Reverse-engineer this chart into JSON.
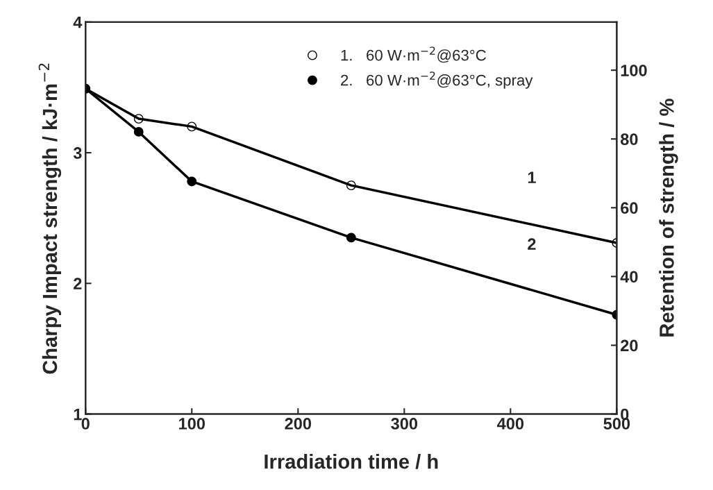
{
  "chart_data": {
    "type": "line",
    "xlabel": "Irradiation time / h",
    "ylabel": "Charpy Impact strength / kJ·m$^{−2}$",
    "y2label": "Retention of strength / %",
    "x": [
      0,
      50,
      100,
      250,
      500
    ],
    "series": [
      {
        "name": "1.   60 W·m$^{−2}$@63°C",
        "color": "#000000",
        "values": [
          3.49,
          3.26,
          3.2,
          2.75,
          2.31
        ]
      },
      {
        "name": "2.   60 W·m$^{−2}$@63°C, spray",
        "color": "#000000",
        "values": [
          3.49,
          3.16,
          2.78,
          2.35,
          1.76
        ]
      }
    ],
    "xlim": [
      0,
      500
    ],
    "xticks": [
      0,
      100,
      200,
      300,
      400,
      500
    ],
    "ylim": [
      1,
      4
    ],
    "yticks": [
      1,
      2,
      3,
      4
    ],
    "y2lim": [
      0,
      114
    ],
    "y2ticks": [
      0,
      20,
      40,
      60,
      80,
      100
    ],
    "annotations": [
      "1",
      "2"
    ],
    "marker": "circle",
    "line_style": "solid",
    "grid": false,
    "legend": "top right"
  }
}
